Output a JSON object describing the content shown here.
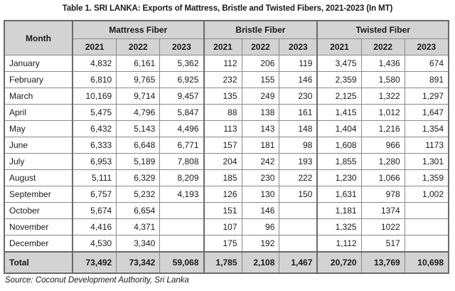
{
  "title": "Table 1. SRI LANKA: Exports of Mattress, Bristle and Twisted Fibers, 2021-2023 (In MT)",
  "header": {
    "month": "Month",
    "groups": [
      "Mattress Fiber",
      "Bristle Fiber",
      "Twisted Fiber"
    ],
    "years": [
      "2021",
      "2022",
      "2023"
    ]
  },
  "rows": [
    {
      "month": "January",
      "values": [
        "4,832",
        "6,161",
        "5,362",
        "112",
        "206",
        "119",
        "3,475",
        "1,436",
        "674"
      ]
    },
    {
      "month": "February",
      "values": [
        "6,810",
        "9,765",
        "6,925",
        "232",
        "155",
        "146",
        "2,359",
        "1,580",
        "891"
      ]
    },
    {
      "month": "March",
      "values": [
        "10,169",
        "9,714",
        "9,457",
        "135",
        "249",
        "230",
        "2,125",
        "1,322",
        "1,297"
      ]
    },
    {
      "month": "April",
      "values": [
        "5,475",
        "4,796",
        "5,847",
        "88",
        "138",
        "161",
        "1,415",
        "1,012",
        "1,647"
      ]
    },
    {
      "month": "May",
      "values": [
        "6,432",
        "5,143",
        "4,496",
        "113",
        "143",
        "148",
        "1,404",
        "1,216",
        "1,354"
      ]
    },
    {
      "month": "June",
      "values": [
        "6,333",
        "6,648",
        "6,771",
        "157",
        "181",
        "98",
        "1,608",
        "966",
        "1173"
      ]
    },
    {
      "month": "July",
      "values": [
        "6,953",
        "5,189",
        "7,808",
        "204",
        "242",
        "193",
        "1,855",
        "1,280",
        "1,301"
      ]
    },
    {
      "month": "August",
      "values": [
        "5,111",
        "6,329",
        "8,209",
        "185",
        "230",
        "222",
        "1,230",
        "1,066",
        "1,359"
      ]
    },
    {
      "month": "September",
      "values": [
        "6,757",
        "5,232",
        "4,193",
        "126",
        "130",
        "150",
        "1,631",
        "978",
        "1,002"
      ]
    },
    {
      "month": "October",
      "values": [
        "5,674",
        "6,654",
        "",
        "151",
        "146",
        "",
        "1,181",
        "1374",
        ""
      ]
    },
    {
      "month": "November",
      "values": [
        "4,416",
        "4,371",
        "",
        "107",
        "96",
        "",
        "1,325",
        "1022",
        ""
      ]
    },
    {
      "month": "December",
      "values": [
        "4,530",
        "3,340",
        "",
        "175",
        "192",
        "",
        "1,112",
        "517",
        ""
      ]
    }
  ],
  "total": {
    "label": "Total",
    "values": [
      "73,492",
      "73,342",
      "59,068",
      "1,785",
      "2,108",
      "1,467",
      "20,720",
      "13,769",
      "10,698"
    ]
  },
  "source": "Source: Coconut Development Authority, Sri Lanka"
}
